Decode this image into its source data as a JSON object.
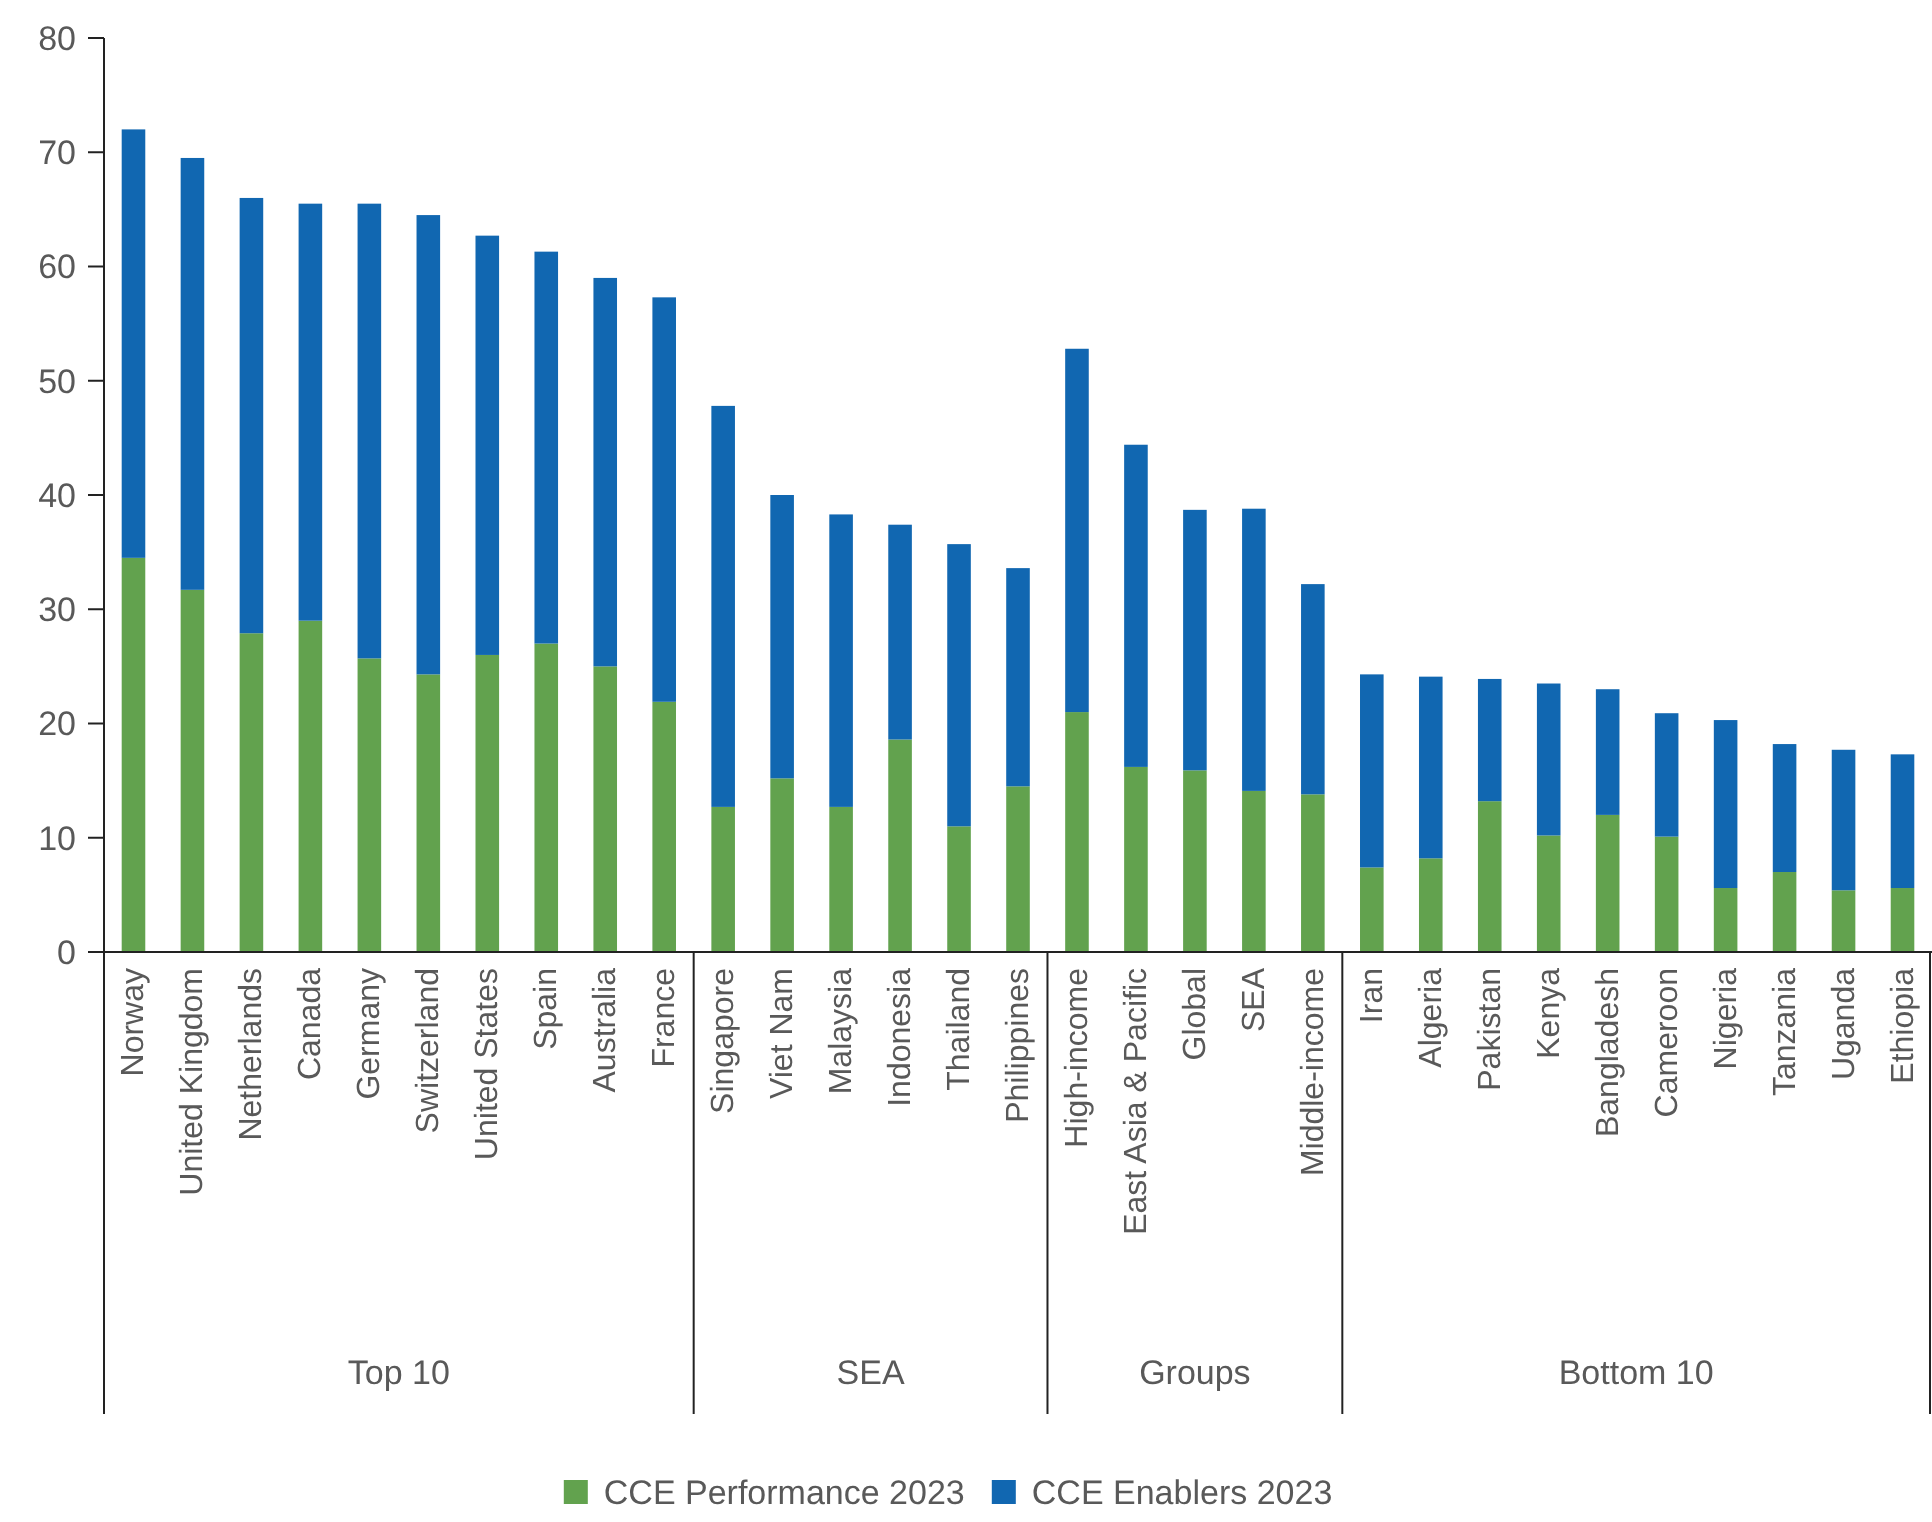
{
  "chart_data": {
    "type": "bar",
    "stacked": true,
    "categories": [
      "Norway",
      "United Kingdom",
      "Netherlands",
      "Canada",
      "Germany",
      "Switzerland",
      "United States",
      "Spain",
      "Australia",
      "France",
      "Singapore",
      "Viet Nam",
      "Malaysia",
      "Indonesia",
      "Thailand",
      "Philippines",
      "High-income",
      "East Asia & Pacific",
      "Global",
      "SEA",
      "Middle-income",
      "Iran",
      "Algeria",
      "Pakistan",
      "Kenya",
      "Bangladesh",
      "Cameroon",
      "Nigeria",
      "Tanzania",
      "Uganda",
      "Ethiopia"
    ],
    "series": [
      {
        "name": "CCE Performance 2023",
        "color": "#62a24e",
        "values": [
          34.5,
          31.7,
          27.9,
          29,
          25.7,
          24.3,
          26,
          27,
          25,
          21.9,
          12.7,
          15.2,
          12.7,
          18.6,
          11,
          14.5,
          21,
          16.2,
          15.9,
          14.1,
          13.8,
          7.4,
          8.2,
          13.2,
          10.2,
          12,
          10.1,
          5.6,
          7,
          5.4,
          5.6
        ]
      },
      {
        "name": "CCE Enablers 2023",
        "color": "#1167b1",
        "values": [
          37.5,
          37.8,
          38.1,
          36.5,
          39.8,
          40.2,
          36.7,
          34.3,
          34,
          35.4,
          35.1,
          24.8,
          25.6,
          18.8,
          24.7,
          19.1,
          31.8,
          28.2,
          22.8,
          24.7,
          18.4,
          16.9,
          15.9,
          10.7,
          13.3,
          11,
          10.8,
          14.7,
          11.2,
          12.3,
          11.7
        ]
      }
    ],
    "ylim": [
      0,
      80
    ],
    "yticks": [
      0,
      10,
      20,
      30,
      40,
      50,
      60,
      70,
      80
    ],
    "grid": false,
    "legend": "bottom",
    "annotations": [
      "Top 10",
      "SEA",
      "Groups",
      "Bottom 10"
    ]
  }
}
